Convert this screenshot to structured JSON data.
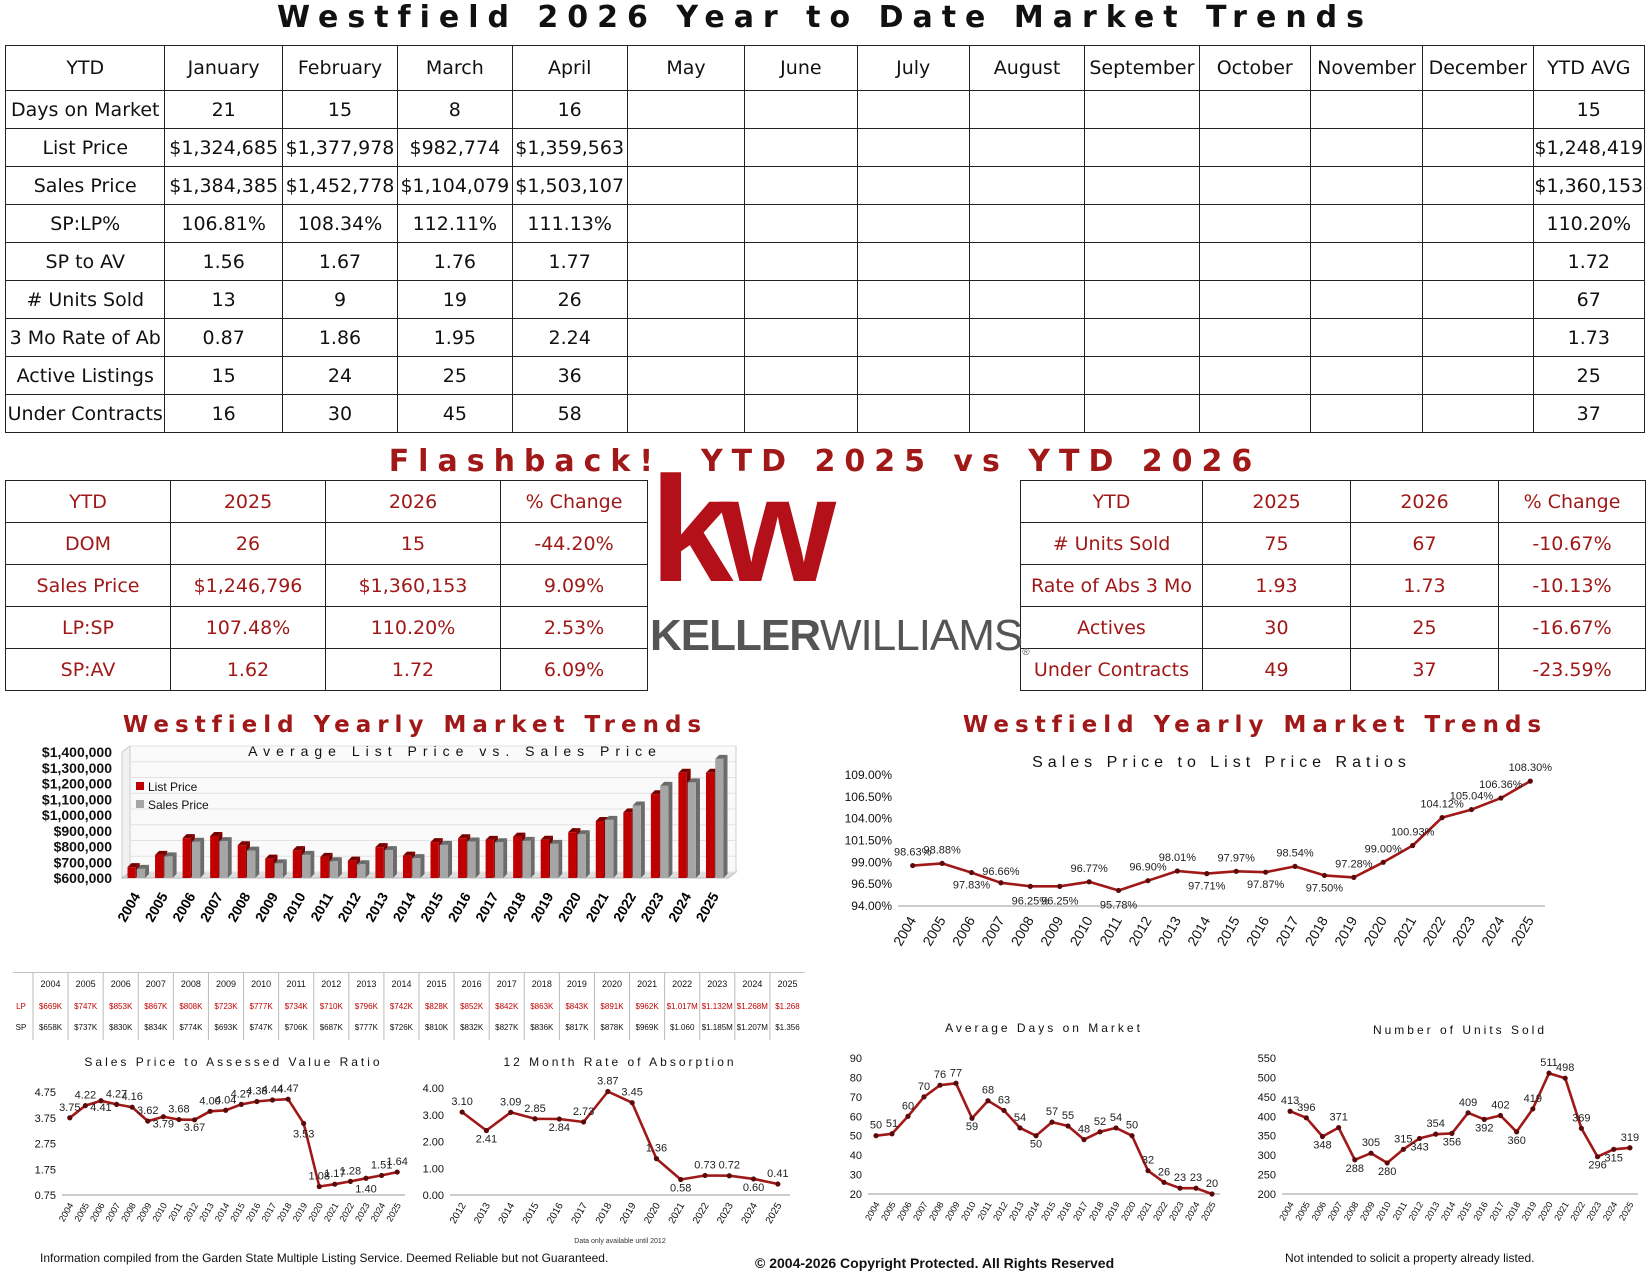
{
  "page_title": "Westfield 2026 Year to Date Market Trends",
  "ytd_table": {
    "headers": [
      "YTD",
      "January",
      "February",
      "March",
      "April",
      "May",
      "June",
      "July",
      "August",
      "September",
      "October",
      "November",
      "December",
      "YTD AVG"
    ],
    "rows": [
      [
        "Days on Market",
        "21",
        "15",
        "8",
        "16",
        "",
        "",
        "",
        "",
        "",
        "",
        "",
        "",
        "15"
      ],
      [
        "List Price",
        "$1,324,685",
        "$1,377,978",
        "$982,774",
        "$1,359,563",
        "",
        "",
        "",
        "",
        "",
        "",
        "",
        "",
        "$1,248,419"
      ],
      [
        "Sales Price",
        "$1,384,385",
        "$1,452,778",
        "$1,104,079",
        "$1,503,107",
        "",
        "",
        "",
        "",
        "",
        "",
        "",
        "",
        "$1,360,153"
      ],
      [
        "SP:LP%",
        "106.81%",
        "108.34%",
        "112.11%",
        "111.13%",
        "",
        "",
        "",
        "",
        "",
        "",
        "",
        "",
        "110.20%"
      ],
      [
        "SP to AV",
        "1.56",
        "1.67",
        "1.76",
        "1.77",
        "",
        "",
        "",
        "",
        "",
        "",
        "",
        "",
        "1.72"
      ],
      [
        "# Units Sold",
        "13",
        "9",
        "19",
        "26",
        "",
        "",
        "",
        "",
        "",
        "",
        "",
        "",
        "67"
      ],
      [
        "3 Mo Rate of Ab",
        "0.87",
        "1.86",
        "1.95",
        "2.24",
        "",
        "",
        "",
        "",
        "",
        "",
        "",
        "",
        "1.73"
      ],
      [
        "Active Listings",
        "15",
        "24",
        "25",
        "36",
        "",
        "",
        "",
        "",
        "",
        "",
        "",
        "",
        "25"
      ],
      [
        "Under Contracts",
        "16",
        "30",
        "45",
        "58",
        "",
        "",
        "",
        "",
        "",
        "",
        "",
        "",
        "37"
      ]
    ]
  },
  "flashback_title": "Flashback!  YTD 2025 vs YTD 2026",
  "flashback_left": {
    "headers": [
      "YTD",
      "2025",
      "2026",
      "% Change"
    ],
    "rows": [
      [
        "DOM",
        "26",
        "15",
        "-44.20%"
      ],
      [
        "Sales Price",
        "$1,246,796",
        "$1,360,153",
        "9.09%"
      ],
      [
        "LP:SP",
        "107.48%",
        "110.20%",
        "2.53%"
      ],
      [
        "SP:AV",
        "1.62",
        "1.72",
        "6.09%"
      ]
    ]
  },
  "flashback_right": {
    "headers": [
      "YTD",
      "2025",
      "2026",
      "% Change"
    ],
    "rows": [
      [
        "# Units Sold",
        "75",
        "67",
        "-10.67%"
      ],
      [
        "Rate of Abs 3 Mo",
        "1.93",
        "1.73",
        "-10.13%"
      ],
      [
        "Actives",
        "30",
        "25",
        "-16.67%"
      ],
      [
        "Under Contracts",
        "49",
        "37",
        "-23.59%"
      ]
    ]
  },
  "logo": {
    "mark": "kw",
    "wordmark_bold": "KELLER",
    "wordmark_light": "WILLIAMS",
    "registered": "®"
  },
  "section_titles": {
    "left": "Westfield Yearly Market Trends",
    "right": "Westfield Yearly Market Trends"
  },
  "colors": {
    "accent": "#a01818",
    "bar_lp": "#c00000",
    "bar_sp": "#a6a6a6",
    "line": "#a01818",
    "grid": "#cccccc"
  },
  "chart_data": [
    {
      "id": "lp_vs_sp",
      "type": "bar",
      "title": "Average List Price vs. Sales Price",
      "categories": [
        "2004",
        "2005",
        "2006",
        "2007",
        "2008",
        "2009",
        "2010",
        "2011",
        "2012",
        "2013",
        "2014",
        "2015",
        "2016",
        "2017",
        "2018",
        "2019",
        "2020",
        "2021",
        "2022",
        "2023",
        "2024",
        "2025"
      ],
      "series": [
        {
          "name": "List Price",
          "values": [
            669000,
            747000,
            853000,
            867000,
            808000,
            723000,
            777000,
            734000,
            710000,
            796000,
            742000,
            828000,
            852000,
            842000,
            863000,
            843000,
            891000,
            962000,
            1017000,
            1132000,
            1268000,
            1268000
          ]
        },
        {
          "name": "Sales Price",
          "values": [
            658000,
            737000,
            830000,
            834000,
            774000,
            693000,
            747000,
            706000,
            687000,
            777000,
            726000,
            810000,
            832000,
            827000,
            836000,
            817000,
            878000,
            969000,
            1060000,
            1185000,
            1207000,
            1356000
          ]
        }
      ],
      "ylim": [
        600000,
        1400000
      ],
      "yticks": [
        "$600,000",
        "$700,000",
        "$800,000",
        "$900,000",
        "$1,000,000",
        "$1,100,000",
        "$1,200,000",
        "$1,300,000",
        "$1,400,000"
      ],
      "legend": "top-left",
      "table": {
        "row_labels": [
          "LP",
          "SP"
        ],
        "lp": [
          "$669K",
          "$747K",
          "$853K",
          "$867K",
          "$808K",
          "$723K",
          "$777K",
          "$734K",
          "$710K",
          "$796K",
          "$742K",
          "$828K",
          "$852K",
          "$842K",
          "$863K",
          "$843K",
          "$891K",
          "$962K",
          "$1.017M",
          "$1.132M",
          "$1.268M",
          "$1.268"
        ],
        "sp": [
          "$658K",
          "$737K",
          "$830K",
          "$834K",
          "$774K",
          "$693K",
          "$747K",
          "$706K",
          "$687K",
          "$777K",
          "$726K",
          "$810K",
          "$832K",
          "$827K",
          "$836K",
          "$817K",
          "$878K",
          "$969K",
          "$1.060",
          "$1.185M",
          "$1.207M",
          "$1.356"
        ]
      }
    },
    {
      "id": "sp_lp_ratio",
      "type": "line",
      "title": "Sales Price to List Price Ratios",
      "x": [
        "2004",
        "2005",
        "2006",
        "2007",
        "2008",
        "2009",
        "2010",
        "2011",
        "2012",
        "2013",
        "2014",
        "2015",
        "2016",
        "2017",
        "2018",
        "2019",
        "2020",
        "2021",
        "2022",
        "2023",
        "2024",
        "2025"
      ],
      "values": [
        98.63,
        98.88,
        97.83,
        96.66,
        96.25,
        96.25,
        96.77,
        95.78,
        96.9,
        98.01,
        97.71,
        97.97,
        97.87,
        98.54,
        97.5,
        97.28,
        99.0,
        100.93,
        104.12,
        105.04,
        106.36,
        108.3
      ],
      "labels": [
        "98.63%",
        "98.88%",
        "97.83%",
        "96.66%",
        "96.25%",
        "96.25%",
        "96.77%",
        "95.78%",
        "96.90%",
        "98.01%",
        "97.71%",
        "97.97%",
        "97.87%",
        "98.54%",
        "97.50%",
        "97.28%",
        "99.00%",
        "100.93%",
        "104.12%",
        "105.04%",
        "106.36%",
        "108.30%"
      ],
      "ylim": [
        94,
        109
      ],
      "yticks": [
        "94.00%",
        "96.50%",
        "99.00%",
        "101.50%",
        "104.00%",
        "106.50%",
        "109.00%"
      ]
    },
    {
      "id": "sp_av",
      "type": "line",
      "title": "Sales Price to Assessed Value Ratio",
      "x": [
        "2004",
        "2005",
        "2006",
        "2007",
        "2008",
        "2009",
        "2010",
        "2011",
        "2012",
        "2013",
        "2014",
        "2015",
        "2016",
        "2017",
        "2018",
        "2019",
        "2020",
        "2021",
        "2022",
        "2023",
        "2024",
        "2025"
      ],
      "values": [
        3.75,
        4.22,
        4.41,
        4.27,
        4.16,
        3.62,
        3.79,
        3.68,
        3.67,
        4.0,
        4.04,
        4.27,
        4.38,
        4.44,
        4.47,
        3.53,
        1.08,
        1.17,
        1.28,
        1.4,
        1.51,
        1.64
      ],
      "labels": [
        "3.75",
        "4.22",
        "4.41",
        "4.27",
        "4.16",
        "3.62",
        "3.79",
        "3.68",
        "3.67",
        "4.00",
        "4.04",
        "4.27",
        "4.38",
        "4.44",
        "4.47",
        "3.53",
        "1.08",
        "1.17",
        "1.28",
        "1.40",
        "1.51",
        "1.64"
      ],
      "ylim": [
        0.75,
        4.75
      ],
      "yticks": [
        "0.75",
        "1.75",
        "2.75",
        "3.75",
        "4.75"
      ]
    },
    {
      "id": "absorption",
      "type": "line",
      "title": "12 Month Rate of Absorption",
      "x": [
        "2012",
        "2013",
        "2014",
        "2015",
        "2016",
        "2017",
        "2018",
        "2019",
        "2020",
        "2021",
        "2022",
        "2023",
        "2024",
        "2025"
      ],
      "values": [
        3.1,
        2.41,
        3.09,
        2.85,
        2.84,
        2.73,
        3.87,
        3.45,
        1.36,
        0.58,
        0.73,
        0.72,
        0.6,
        0.41
      ],
      "labels": [
        "3.10",
        "2.41",
        "3.09",
        "2.85",
        "2.84",
        "2.73",
        "3.87",
        "3.45",
        "1.36",
        "0.58",
        "0.73",
        "0.72",
        "0.60",
        "0.41"
      ],
      "ylim": [
        0,
        4
      ],
      "yticks": [
        "0.00",
        "1.00",
        "2.00",
        "3.00",
        "4.00"
      ],
      "note": "Data only available until 2012"
    },
    {
      "id": "dom",
      "type": "line",
      "title": "Average Days on Market",
      "x": [
        "2004",
        "2005",
        "2006",
        "2007",
        "2008",
        "2009",
        "2010",
        "2011",
        "2012",
        "2013",
        "2014",
        "2015",
        "2016",
        "2017",
        "2018",
        "2019",
        "2020",
        "2021",
        "2022",
        "2023",
        "2024",
        "2025"
      ],
      "values": [
        50,
        51,
        60,
        70,
        76,
        77,
        59,
        68,
        63,
        54,
        50,
        57,
        55,
        48,
        52,
        54,
        50,
        32,
        26,
        23,
        23,
        20
      ],
      "labels": [
        "50",
        "51",
        "60",
        "70",
        "76",
        "77",
        "59",
        "68",
        "63",
        "54",
        "50",
        "57",
        "55",
        "48",
        "52",
        "54",
        "50",
        "32",
        "26",
        "23",
        "23",
        "20"
      ],
      "ylim": [
        20,
        90
      ],
      "yticks": [
        "20",
        "30",
        "40",
        "50",
        "60",
        "70",
        "80",
        "90"
      ]
    },
    {
      "id": "units_sold",
      "type": "line",
      "title": "Number of Units Sold",
      "x": [
        "2004",
        "2005",
        "2006",
        "2007",
        "2008",
        "2009",
        "2010",
        "2011",
        "2012",
        "2013",
        "2014",
        "2015",
        "2016",
        "2017",
        "2018",
        "2019",
        "2020",
        "2021",
        "2022",
        "2023",
        "2024",
        "2025"
      ],
      "values": [
        413,
        396,
        348,
        371,
        288,
        305,
        280,
        315,
        343,
        354,
        356,
        409,
        392,
        402,
        360,
        419,
        511,
        498,
        369,
        296,
        315,
        319
      ],
      "labels": [
        "413",
        "396",
        "348",
        "371",
        "288",
        "305",
        "280",
        "315",
        "343",
        "354",
        "356",
        "409",
        "392",
        "402",
        "360",
        "419",
        "511",
        "498",
        "369",
        "296",
        "315",
        "319"
      ],
      "ylim": [
        200,
        550
      ],
      "yticks": [
        "200",
        "250",
        "300",
        "350",
        "400",
        "450",
        "500",
        "550"
      ]
    }
  ],
  "footer": {
    "left": "Information compiled from the Garden State Multiple Listing Service.  Deemed Reliable but not Guaranteed.",
    "center": "© 2004-2026 Copyright Protected.  All Rights Reserved",
    "right": "Not intended to solicit a property already listed."
  }
}
